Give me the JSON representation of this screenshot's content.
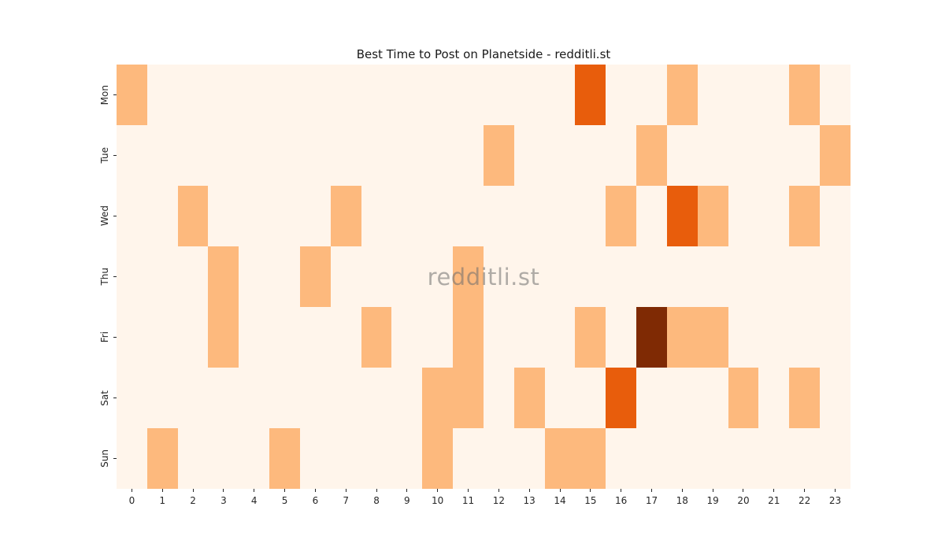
{
  "chart_data": {
    "type": "heatmap",
    "title": "Best Time to Post on Planetside - redditli.st",
    "xlabel": "",
    "ylabel": "",
    "x_labels": [
      "0",
      "1",
      "2",
      "3",
      "4",
      "5",
      "6",
      "7",
      "8",
      "9",
      "10",
      "11",
      "12",
      "13",
      "14",
      "15",
      "16",
      "17",
      "18",
      "19",
      "20",
      "21",
      "22",
      "23"
    ],
    "y_labels": [
      "Mon",
      "Tue",
      "Wed",
      "Thu",
      "Fri",
      "Sat",
      "Sun"
    ],
    "values": [
      [
        1,
        0,
        0,
        0,
        0,
        0,
        0,
        0,
        0,
        0,
        0,
        0,
        0,
        0,
        0,
        2,
        0,
        0,
        1,
        0,
        0,
        0,
        1,
        0
      ],
      [
        0,
        0,
        0,
        0,
        0,
        0,
        0,
        0,
        0,
        0,
        0,
        0,
        1,
        0,
        0,
        0,
        0,
        1,
        0,
        0,
        0,
        0,
        0,
        1
      ],
      [
        0,
        0,
        1,
        0,
        0,
        0,
        0,
        1,
        0,
        0,
        0,
        0,
        0,
        0,
        0,
        0,
        1,
        0,
        2,
        1,
        0,
        0,
        1,
        0
      ],
      [
        0,
        0,
        0,
        1,
        0,
        0,
        1,
        0,
        0,
        0,
        0,
        1,
        0,
        0,
        0,
        0,
        0,
        0,
        0,
        0,
        0,
        0,
        0,
        0
      ],
      [
        0,
        0,
        0,
        1,
        0,
        0,
        0,
        0,
        1,
        0,
        0,
        1,
        0,
        0,
        0,
        1,
        0,
        3,
        1,
        1,
        0,
        0,
        0,
        0
      ],
      [
        0,
        0,
        0,
        0,
        0,
        0,
        0,
        0,
        0,
        0,
        1,
        1,
        0,
        1,
        0,
        0,
        2,
        0,
        0,
        0,
        1,
        0,
        1,
        0
      ],
      [
        0,
        1,
        0,
        0,
        0,
        1,
        0,
        0,
        0,
        0,
        1,
        0,
        0,
        0,
        1,
        1,
        0,
        0,
        0,
        0,
        0,
        0,
        0,
        0
      ]
    ],
    "value_colors": {
      "0": "#fff5eb",
      "1": "#fdb97d",
      "2": "#e85d0c",
      "3": "#7f2a04"
    },
    "grid": "off",
    "legend": "none",
    "watermark": "redditli.st"
  },
  "figure": {
    "background_color": "#ffffff",
    "tick_color": "#262626"
  }
}
